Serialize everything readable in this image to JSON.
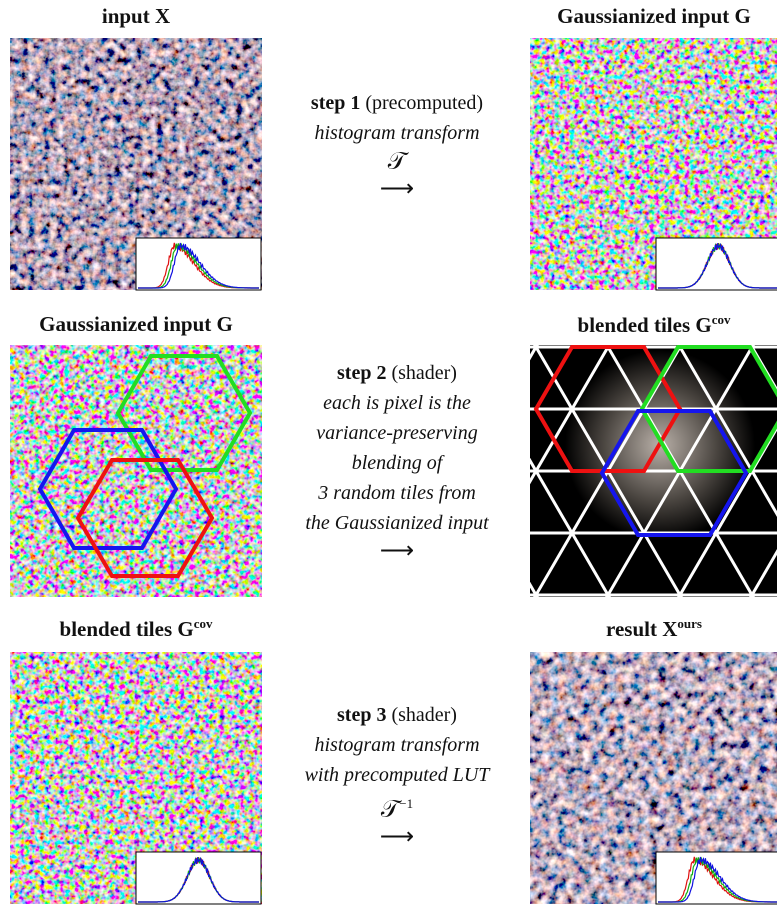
{
  "rows": [
    {
      "left_title": {
        "text": "input X"
      },
      "right_title": {
        "text": "Gaussianized input G"
      },
      "step": {
        "label": "step 1",
        "note": "(precomputed)",
        "lines": [
          "histogram transform"
        ],
        "symbol": {
          "text": "𝒯"
        },
        "arrow": "⟶"
      }
    },
    {
      "left_title": {
        "text": "Gaussianized input G"
      },
      "right_title": {
        "text": "blended tiles G",
        "sup": "cov"
      },
      "step": {
        "label": "step 2",
        "note": "(shader)",
        "lines": [
          "each is pixel is the",
          "variance-preserving",
          "blending of",
          "3 random tiles from",
          "the Gaussianized input"
        ],
        "arrow": "⟶"
      }
    },
    {
      "left_title": {
        "text": "blended tiles G",
        "sup": "cov"
      },
      "right_title": {
        "text": "result X",
        "sup": "ours"
      },
      "step": {
        "label": "step 3",
        "note": "(shader)",
        "lines": [
          "histogram transform",
          "with precomputed LUT"
        ],
        "symbol": {
          "text": "𝒯",
          "sup": "−1"
        },
        "arrow": "⟶"
      }
    }
  ]
}
